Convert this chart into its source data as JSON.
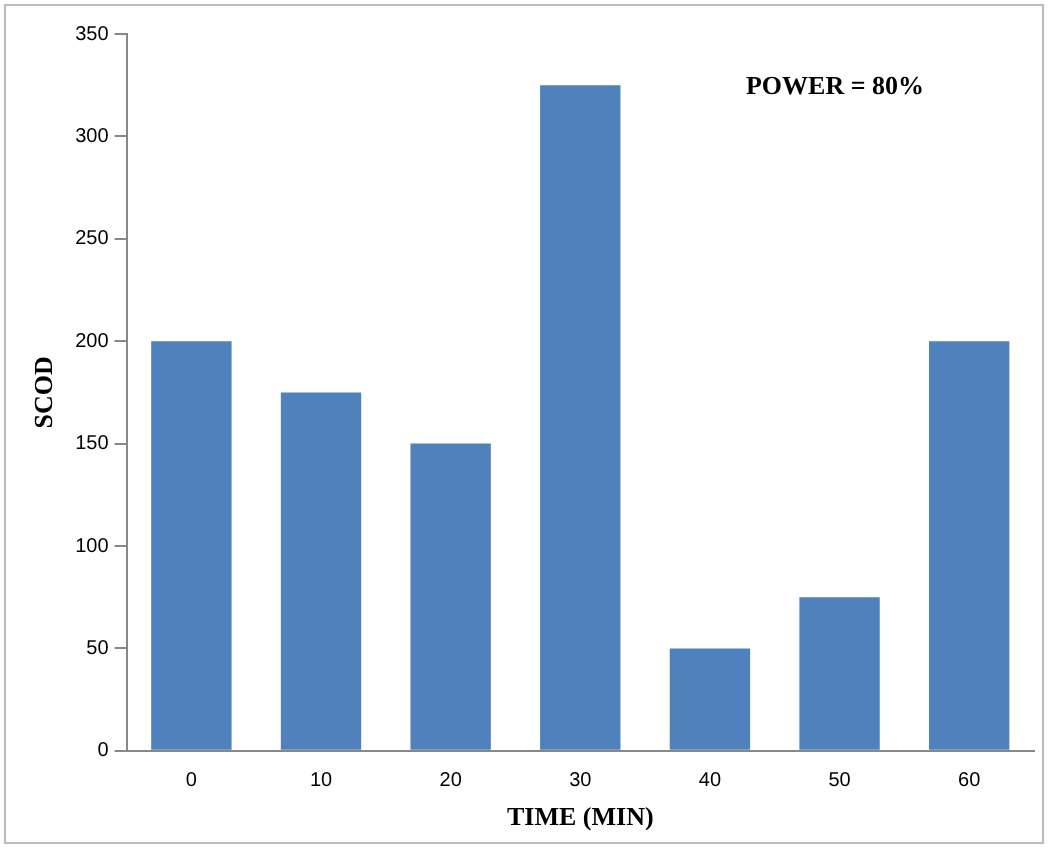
{
  "chart_data": {
    "type": "bar",
    "xlabel": "TIME (MIN)",
    "ylabel": "SCOD",
    "categories": [
      "0",
      "10",
      "20",
      "30",
      "40",
      "50",
      "60"
    ],
    "values": [
      200,
      175,
      150,
      325,
      50,
      75,
      200
    ],
    "color": "#4f81bd",
    "ylim": [
      0,
      350
    ],
    "yticks": [
      0,
      50,
      100,
      150,
      200,
      250,
      300,
      350
    ],
    "grid": false,
    "annotations": [
      "POWER = 80%"
    ]
  }
}
